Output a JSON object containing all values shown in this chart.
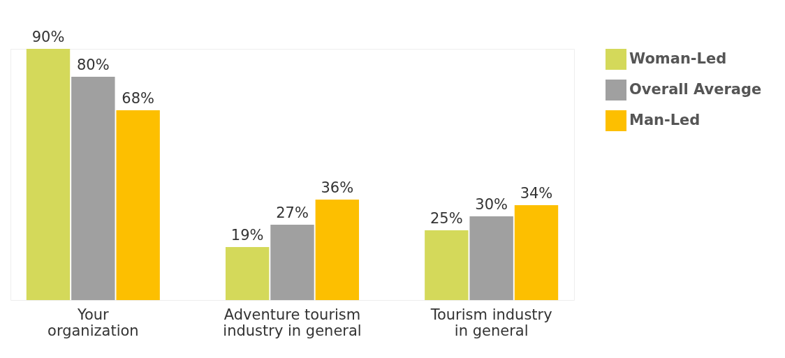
{
  "chart_data": {
    "type": "bar",
    "categories": [
      "Your organization",
      "Adventure tourism industry in general",
      "Tourism industry in general"
    ],
    "series": [
      {
        "name": "Woman-Led",
        "color": "#d4d95a",
        "values": [
          90,
          19,
          25
        ],
        "value_labels": [
          "90%",
          "19%",
          "25%"
        ]
      },
      {
        "name": "Overall Average",
        "color": "#a0a0a0",
        "values": [
          80,
          27,
          30
        ],
        "value_labels": [
          "80%",
          "27%",
          "30%"
        ]
      },
      {
        "name": "Man-Led",
        "color": "#fdbf00",
        "values": [
          68,
          36,
          34
        ],
        "value_labels": [
          "68%",
          "36%",
          "34%"
        ]
      }
    ],
    "legend": "top right",
    "grid": false
  }
}
